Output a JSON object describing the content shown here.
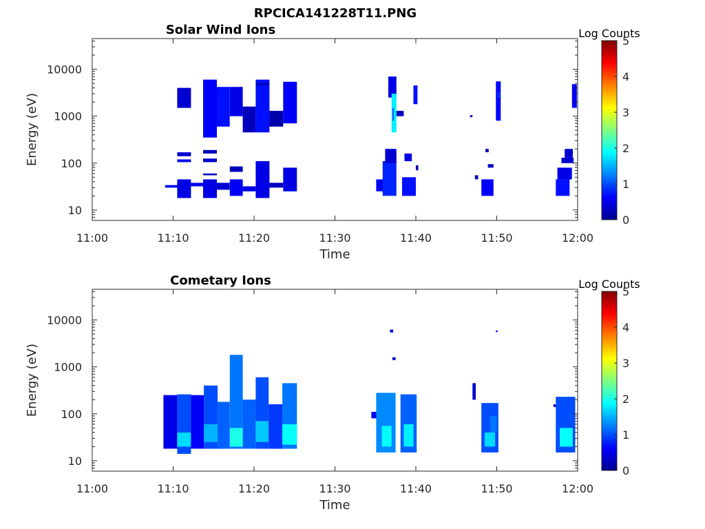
{
  "figure": {
    "title": "RPCICA141228T11.PNG"
  },
  "chart_data": [
    {
      "type": "heatmap",
      "title": "Solar Wind Ions",
      "xlabel": "Time",
      "ylabel": "Energy (eV)",
      "x_ticks": [
        "11:00",
        "11:10",
        "11:20",
        "11:30",
        "11:40",
        "11:50",
        "12:00"
      ],
      "x_range_minutes": [
        0,
        60
      ],
      "y_scale": "log",
      "y_ticks": [
        "10",
        "100",
        "1000",
        "10000"
      ],
      "y_range": [
        6,
        45000
      ],
      "colorbar": {
        "label": "Log Counts",
        "ticks": [
          "0",
          "1",
          "2",
          "3",
          "4",
          "5"
        ],
        "range": [
          0,
          5
        ],
        "colormap": "jet"
      },
      "cells": [
        [
          9,
          11,
          30,
          34,
          0.6
        ],
        [
          10.5,
          12.2,
          18,
          45,
          0.5
        ],
        [
          10.5,
          12.2,
          1500,
          4000,
          0.4
        ],
        [
          10.5,
          12.2,
          140,
          170,
          0.4
        ],
        [
          10.5,
          12.2,
          105,
          120,
          0.5
        ],
        [
          12.2,
          14,
          32,
          38,
          0.5
        ],
        [
          13.7,
          15.4,
          18,
          45,
          0.5
        ],
        [
          13.7,
          15.4,
          350,
          6000,
          0.6
        ],
        [
          13.7,
          15.4,
          160,
          190,
          0.3
        ],
        [
          13.7,
          15.4,
          105,
          125,
          0.4
        ],
        [
          13.7,
          15.4,
          55,
          60,
          0.3
        ],
        [
          15.4,
          17.0,
          27,
          38,
          0.4
        ],
        [
          15.4,
          17.0,
          600,
          4200,
          0.7
        ],
        [
          17.0,
          18.6,
          20,
          45,
          0.6
        ],
        [
          17.0,
          18.6,
          1000,
          4200,
          0.5
        ],
        [
          17.0,
          18.6,
          65,
          85,
          0.3
        ],
        [
          18.6,
          20.2,
          25,
          32,
          0.5
        ],
        [
          18.6,
          20.2,
          450,
          1600,
          0.3
        ],
        [
          20.2,
          21.9,
          18,
          110,
          0.5
        ],
        [
          20.2,
          21.9,
          450,
          6000,
          0.7
        ],
        [
          20.2,
          21.9,
          4600,
          5000,
          0.2
        ],
        [
          21.9,
          23.6,
          30,
          38,
          0.3
        ],
        [
          21.9,
          23.6,
          600,
          1300,
          0.2
        ],
        [
          23.6,
          25.3,
          25,
          80,
          0.5
        ],
        [
          23.6,
          25.3,
          700,
          5400,
          0.6
        ],
        [
          35.1,
          36.0,
          25,
          45,
          0.6
        ],
        [
          35.9,
          37.6,
          20,
          110,
          0.8
        ],
        [
          36.2,
          37.6,
          100,
          200,
          0.4
        ],
        [
          36.6,
          37.6,
          2500,
          7000,
          0.5
        ],
        [
          37.0,
          37.6,
          450,
          3000,
          1.8
        ],
        [
          37.1,
          37.3,
          800,
          1500,
          1.1
        ],
        [
          37.6,
          38.5,
          1000,
          1300,
          0.3
        ],
        [
          38.3,
          40.0,
          20,
          50,
          0.7
        ],
        [
          38.6,
          39.5,
          110,
          160,
          0.5
        ],
        [
          39.7,
          40.2,
          1800,
          4500,
          0.7
        ],
        [
          40.0,
          40.3,
          70,
          90,
          0.3
        ],
        [
          46.7,
          47.0,
          950,
          1050,
          0.3
        ],
        [
          47.3,
          47.7,
          45,
          55,
          0.3
        ],
        [
          48.1,
          49.6,
          20,
          45,
          0.6
        ],
        [
          48.6,
          49.0,
          170,
          200,
          0.3
        ],
        [
          48.9,
          49.6,
          80,
          95,
          0.3
        ],
        [
          49.9,
          50.5,
          800,
          5500,
          0.6
        ],
        [
          50.1,
          50.4,
          2500,
          3200,
          0.9
        ],
        [
          57.3,
          59.0,
          20,
          45,
          0.7
        ],
        [
          57.5,
          59.3,
          45,
          80,
          0.5
        ],
        [
          58.0,
          59.5,
          100,
          130,
          0.4
        ],
        [
          58.4,
          59.4,
          130,
          200,
          0.4
        ],
        [
          59.3,
          59.9,
          1500,
          4800,
          0.6
        ]
      ]
    },
    {
      "type": "heatmap",
      "title": "Cometary Ions",
      "xlabel": "Time",
      "ylabel": "Energy (eV)",
      "x_ticks": [
        "11:00",
        "11:10",
        "11:20",
        "11:30",
        "11:40",
        "11:50",
        "12:00"
      ],
      "x_range_minutes": [
        0,
        60
      ],
      "y_scale": "log",
      "y_ticks": [
        "10",
        "100",
        "1000",
        "10000"
      ],
      "y_range": [
        6,
        45000
      ],
      "colorbar": {
        "label": "Log Counts",
        "ticks": [
          "0",
          "1",
          "2",
          "3",
          "4",
          "5"
        ],
        "range": [
          0,
          5
        ],
        "colormap": "jet"
      },
      "cells": [
        [
          8.8,
          10.5,
          18,
          250,
          0.5
        ],
        [
          10.5,
          12.2,
          14,
          260,
          1.0
        ],
        [
          10.5,
          12.2,
          20,
          40,
          1.7
        ],
        [
          12.2,
          13.8,
          18,
          250,
          0.6
        ],
        [
          13.8,
          15.5,
          18,
          400,
          1.0
        ],
        [
          13.8,
          15.5,
          25,
          60,
          1.5
        ],
        [
          15.5,
          17.0,
          18,
          180,
          1.1
        ],
        [
          17.0,
          18.6,
          18,
          1800,
          1.2
        ],
        [
          17.0,
          18.6,
          20,
          50,
          2.0
        ],
        [
          18.6,
          20.2,
          18,
          200,
          1.1
        ],
        [
          20.2,
          21.8,
          18,
          600,
          1.0
        ],
        [
          20.2,
          21.8,
          25,
          70,
          1.6
        ],
        [
          21.8,
          23.5,
          18,
          160,
          0.9
        ],
        [
          23.5,
          25.3,
          18,
          450,
          1.2
        ],
        [
          23.5,
          25.3,
          22,
          60,
          1.9
        ],
        [
          34.5,
          35.5,
          80,
          110,
          0.6
        ],
        [
          35.1,
          37.5,
          15,
          280,
          1.3
        ],
        [
          35.8,
          37.0,
          20,
          55,
          1.9
        ],
        [
          36.8,
          37.2,
          5400,
          6200,
          0.5
        ],
        [
          37.1,
          37.5,
          1400,
          1600,
          0.4
        ],
        [
          38.1,
          40.1,
          15,
          260,
          1.1
        ],
        [
          38.5,
          39.7,
          20,
          60,
          1.8
        ],
        [
          47.0,
          47.4,
          200,
          450,
          0.4
        ],
        [
          48.1,
          50.2,
          15,
          170,
          1.0
        ],
        [
          48.5,
          49.8,
          20,
          40,
          1.7
        ],
        [
          49.9,
          50.1,
          5500,
          6000,
          0.5
        ],
        [
          49.2,
          50.0,
          40,
          90,
          1.2
        ],
        [
          57.0,
          57.3,
          140,
          160,
          0.4
        ],
        [
          57.3,
          59.7,
          15,
          230,
          1.0
        ],
        [
          57.8,
          59.4,
          20,
          50,
          1.9
        ]
      ]
    }
  ]
}
